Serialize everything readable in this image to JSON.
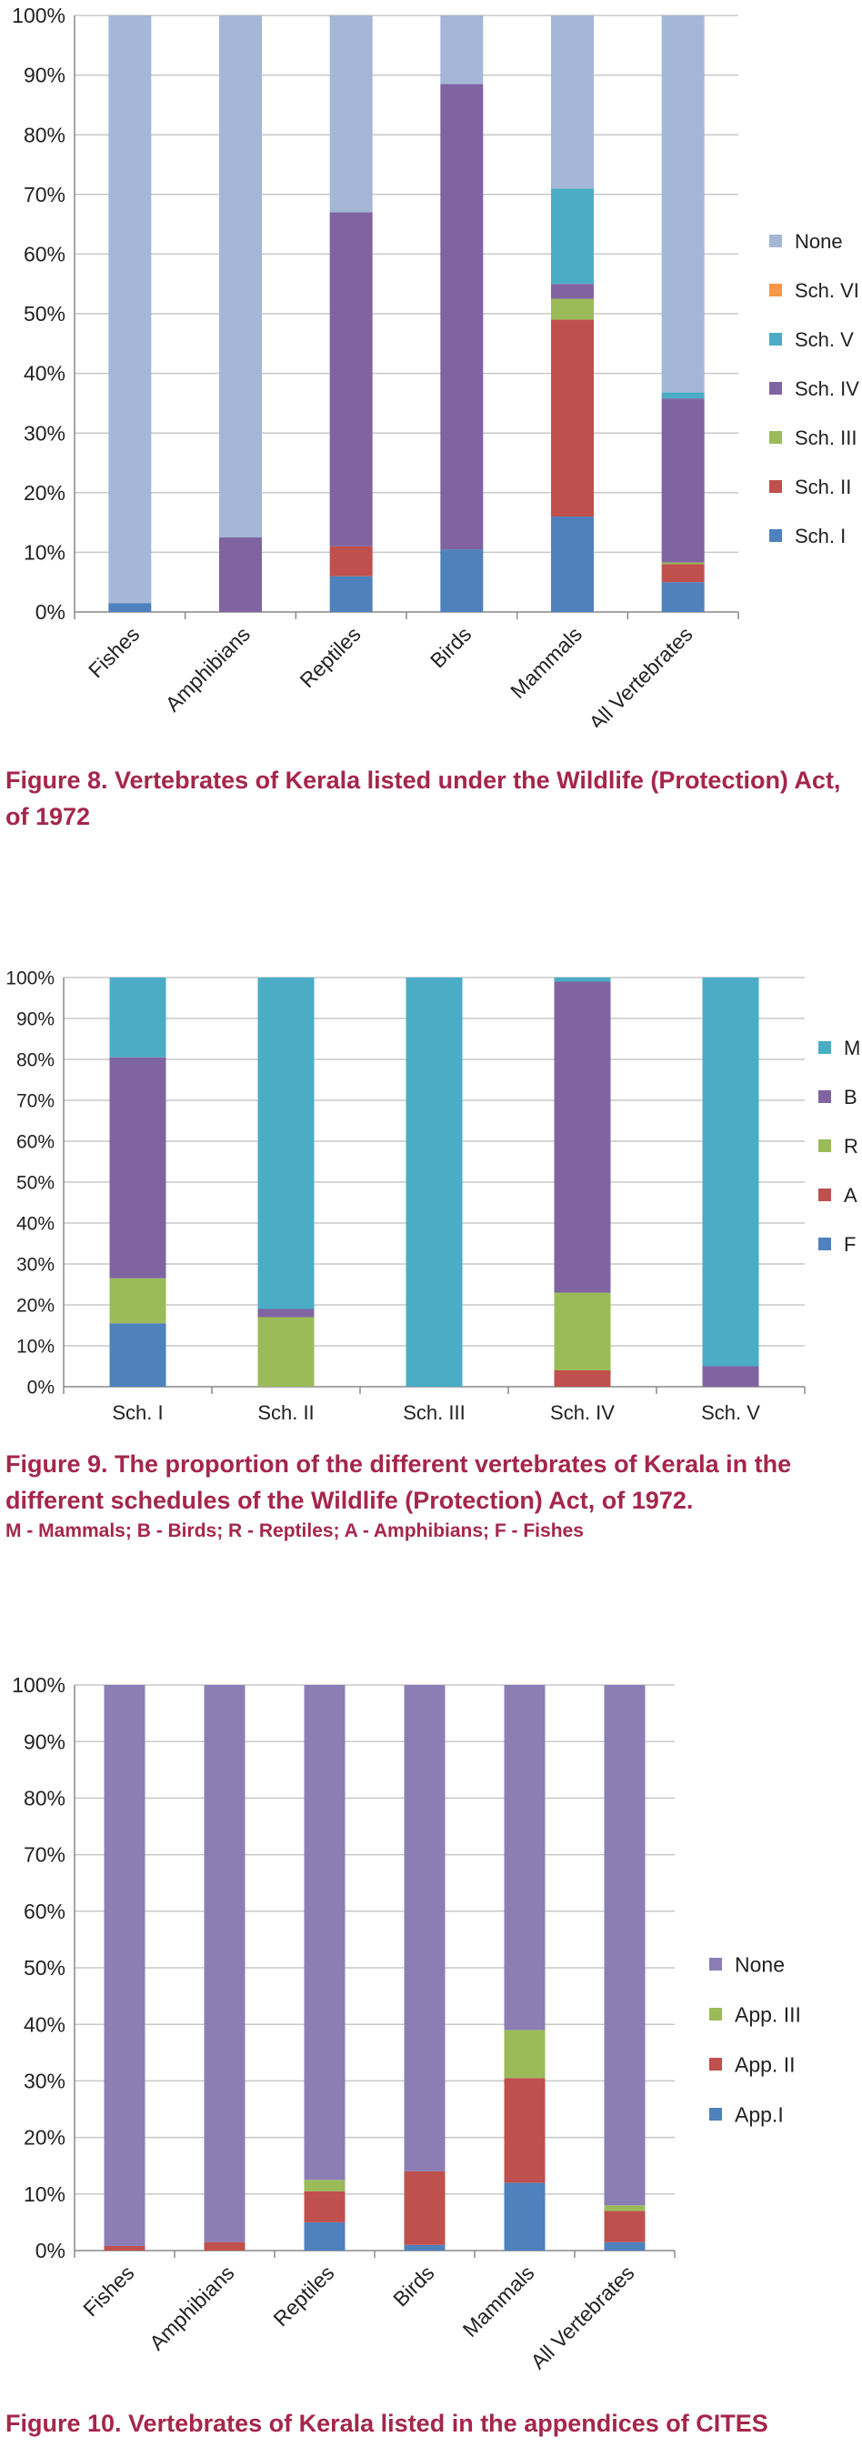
{
  "figures": [
    {
      "caption": "Figure 8. Vertebrates of Kerala listed under the Wildlife (Protection) Act, of 1972",
      "subcaption": ""
    },
    {
      "caption": "Figure 9. The proportion of the different vertebrates of Kerala in the different schedules of the Wildlife (Protection) Act, of 1972.",
      "subcaption": "M - Mammals; B - Birds; R - Reptiles; A - Amphibians; F - Fishes"
    },
    {
      "caption": "Figure 10. Vertebrates of Kerala listed in the appendices of CITES",
      "subcaption": ""
    }
  ],
  "chart_data": [
    {
      "type": "bar",
      "stacked": true,
      "title": "",
      "xlabel": "",
      "ylabel": "",
      "ylim": [
        0,
        100
      ],
      "yticks": [
        "0%",
        "10%",
        "20%",
        "30%",
        "40%",
        "50%",
        "60%",
        "70%",
        "80%",
        "90%",
        "100%"
      ],
      "grid": true,
      "legend_position": "right",
      "categories": [
        "Fishes",
        "Amphibians",
        "Reptiles",
        "Birds",
        "Mammals",
        "All Vertebrates"
      ],
      "series": [
        {
          "name": "Sch. I",
          "color": "#4f81bd",
          "values": [
            1.5,
            0,
            6,
            10.5,
            16,
            5
          ]
        },
        {
          "name": "Sch. II",
          "color": "#c0504d",
          "values": [
            0,
            0,
            5,
            0,
            33,
            3
          ]
        },
        {
          "name": "Sch. III",
          "color": "#9bbb59",
          "values": [
            0,
            0,
            0,
            0,
            3.5,
            0.3
          ]
        },
        {
          "name": "Sch. IV",
          "color": "#8064a2",
          "values": [
            0,
            12.5,
            56,
            78,
            2.5,
            27.5
          ]
        },
        {
          "name": "Sch. V",
          "color": "#4bacc6",
          "values": [
            0,
            0,
            0,
            0,
            16,
            1
          ]
        },
        {
          "name": "Sch. VI",
          "color": "#f79646",
          "values": [
            0,
            0,
            0,
            0,
            0,
            0
          ]
        },
        {
          "name": "None",
          "color": "#a5b7d6",
          "values": [
            98.5,
            87.5,
            33,
            11.5,
            29,
            63.2
          ]
        }
      ]
    },
    {
      "type": "bar",
      "stacked": true,
      "title": "",
      "xlabel": "",
      "ylabel": "",
      "ylim": [
        0,
        100
      ],
      "yticks": [
        "0%",
        "10%",
        "20%",
        "30%",
        "40%",
        "50%",
        "60%",
        "70%",
        "80%",
        "90%",
        "100%"
      ],
      "grid": true,
      "legend_position": "right",
      "categories": [
        "Sch. I",
        "Sch. II",
        "Sch. III",
        "Sch. IV",
        "Sch. V"
      ],
      "series": [
        {
          "name": "F",
          "color": "#4f81bd",
          "values": [
            15.5,
            0,
            0,
            0,
            0
          ]
        },
        {
          "name": "A",
          "color": "#c0504d",
          "values": [
            0,
            0,
            0,
            4,
            0
          ]
        },
        {
          "name": "R",
          "color": "#9bbb59",
          "values": [
            11,
            17,
            0,
            19,
            0
          ]
        },
        {
          "name": "B",
          "color": "#8064a2",
          "values": [
            54,
            2,
            0,
            76,
            5
          ]
        },
        {
          "name": "M",
          "color": "#4bacc6",
          "values": [
            19.5,
            81,
            100,
            1,
            95
          ]
        }
      ]
    },
    {
      "type": "bar",
      "stacked": true,
      "title": "",
      "xlabel": "",
      "ylabel": "",
      "ylim": [
        0,
        100
      ],
      "yticks": [
        "0%",
        "10%",
        "20%",
        "30%",
        "40%",
        "50%",
        "60%",
        "70%",
        "80%",
        "90%",
        "100%"
      ],
      "grid": true,
      "legend_position": "right",
      "categories": [
        "Fishes",
        "Amphibians",
        "Reptiles",
        "Birds",
        "Mammals",
        "All Vertebrates"
      ],
      "series": [
        {
          "name": "App.I",
          "color": "#4f81bd",
          "values": [
            0,
            0,
            5,
            1,
            12,
            1.5
          ]
        },
        {
          "name": "App. II",
          "color": "#c0504d",
          "values": [
            0.8,
            1.5,
            5.5,
            13,
            18.5,
            5.5
          ]
        },
        {
          "name": "App. III",
          "color": "#9bbb59",
          "values": [
            0,
            0,
            2,
            0,
            8.5,
            1
          ]
        },
        {
          "name": "None",
          "color": "#8c7db5",
          "values": [
            99.2,
            98.5,
            87.5,
            86,
            61,
            92
          ]
        }
      ]
    }
  ]
}
